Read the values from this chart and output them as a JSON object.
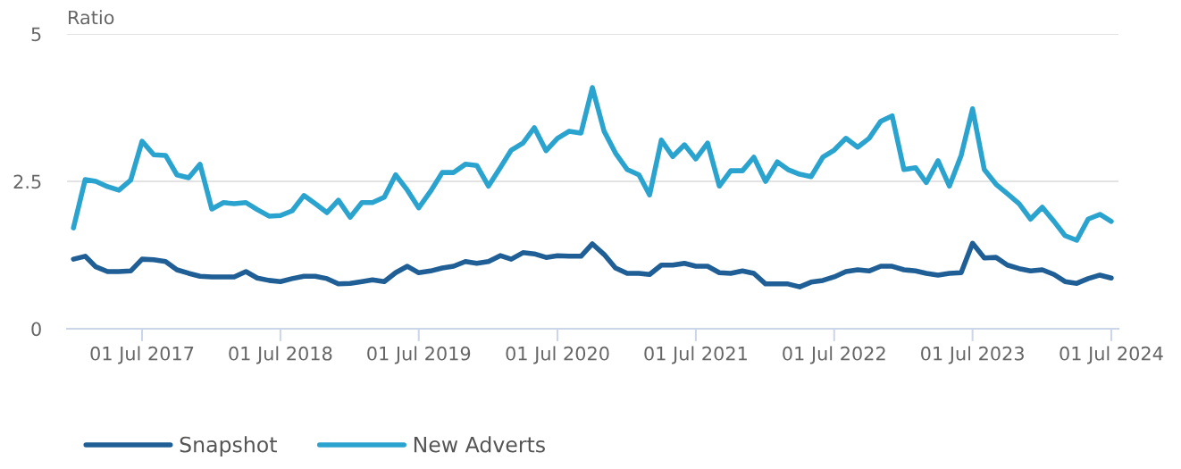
{
  "chart_data": {
    "type": "line",
    "ylabel": "Ratio",
    "x": [
      "2017-01",
      "2017-02",
      "2017-03",
      "2017-04",
      "2017-05",
      "2017-06",
      "2017-07",
      "2017-08",
      "2017-09",
      "2017-10",
      "2017-11",
      "2017-12",
      "2018-01",
      "2018-02",
      "2018-03",
      "2018-04",
      "2018-05",
      "2018-06",
      "2018-07",
      "2018-08",
      "2018-09",
      "2018-10",
      "2018-11",
      "2018-12",
      "2019-01",
      "2019-02",
      "2019-03",
      "2019-04",
      "2019-05",
      "2019-06",
      "2019-07",
      "2019-08",
      "2019-09",
      "2019-10",
      "2019-11",
      "2019-12",
      "2020-01",
      "2020-02",
      "2020-03",
      "2020-04",
      "2020-05",
      "2020-06",
      "2020-07",
      "2020-08",
      "2020-09",
      "2020-10",
      "2020-11",
      "2020-12",
      "2021-01",
      "2021-02",
      "2021-03",
      "2021-04",
      "2021-05",
      "2021-06",
      "2021-07",
      "2021-08",
      "2021-09",
      "2021-10",
      "2021-11",
      "2021-12",
      "2022-01",
      "2022-02",
      "2022-03",
      "2022-04",
      "2022-05",
      "2022-06",
      "2022-07",
      "2022-08",
      "2022-09",
      "2022-10",
      "2022-11",
      "2022-12",
      "2023-01",
      "2023-02",
      "2023-03",
      "2023-04",
      "2023-05",
      "2023-06",
      "2023-07",
      "2023-08",
      "2023-09",
      "2023-10",
      "2023-11",
      "2023-12",
      "2024-01",
      "2024-02",
      "2024-03",
      "2024-04",
      "2024-05",
      "2024-06",
      "2024-07"
    ],
    "series": [
      {
        "name": "Snapshot",
        "color": "#1f5f96",
        "values": [
          1.18,
          1.23,
          1.05,
          0.97,
          0.97,
          0.98,
          1.18,
          1.17,
          1.14,
          1.0,
          0.94,
          0.89,
          0.88,
          0.88,
          0.88,
          0.97,
          0.86,
          0.82,
          0.8,
          0.85,
          0.89,
          0.89,
          0.85,
          0.76,
          0.77,
          0.8,
          0.83,
          0.8,
          0.95,
          1.06,
          0.95,
          0.98,
          1.03,
          1.06,
          1.14,
          1.11,
          1.14,
          1.24,
          1.18,
          1.29,
          1.27,
          1.21,
          1.24,
          1.23,
          1.23,
          1.44,
          1.26,
          1.03,
          0.94,
          0.94,
          0.92,
          1.08,
          1.08,
          1.11,
          1.06,
          1.06,
          0.95,
          0.94,
          0.98,
          0.94,
          0.76,
          0.76,
          0.76,
          0.71,
          0.79,
          0.82,
          0.88,
          0.97,
          1.0,
          0.98,
          1.06,
          1.06,
          1.0,
          0.98,
          0.94,
          0.91,
          0.94,
          0.95,
          1.45,
          1.2,
          1.21,
          1.08,
          1.02,
          0.98,
          1.0,
          0.92,
          0.8,
          0.77,
          0.85,
          0.91,
          0.86
        ]
      },
      {
        "name": "New Adverts",
        "color": "#2ba3cf",
        "values": [
          1.71,
          2.53,
          2.5,
          2.41,
          2.35,
          2.52,
          3.18,
          2.95,
          2.94,
          2.61,
          2.56,
          2.79,
          2.03,
          2.14,
          2.12,
          2.14,
          2.02,
          1.91,
          1.92,
          2.0,
          2.26,
          2.12,
          1.97,
          2.18,
          1.89,
          2.14,
          2.14,
          2.23,
          2.61,
          2.35,
          2.05,
          2.33,
          2.65,
          2.65,
          2.79,
          2.77,
          2.42,
          2.73,
          3.03,
          3.15,
          3.41,
          3.02,
          3.23,
          3.35,
          3.32,
          4.09,
          3.35,
          2.98,
          2.7,
          2.61,
          2.27,
          3.2,
          2.92,
          3.12,
          2.88,
          3.15,
          2.42,
          2.68,
          2.68,
          2.91,
          2.5,
          2.83,
          2.7,
          2.62,
          2.58,
          2.91,
          3.03,
          3.23,
          3.08,
          3.23,
          3.52,
          3.61,
          2.7,
          2.73,
          2.48,
          2.85,
          2.42,
          2.94,
          3.73,
          2.7,
          2.45,
          2.29,
          2.12,
          1.86,
          2.06,
          1.82,
          1.58,
          1.5,
          1.86,
          1.94,
          1.82
        ]
      }
    ],
    "xlim": [
      "2016-12-15",
      "2024-07-20"
    ],
    "xticks": [
      {
        "value": "2017-07-01",
        "label": "01 Jul 2017"
      },
      {
        "value": "2018-07-01",
        "label": "01 Jul 2018"
      },
      {
        "value": "2019-07-01",
        "label": "01 Jul 2019"
      },
      {
        "value": "2020-07-01",
        "label": "01 Jul 2020"
      },
      {
        "value": "2021-07-01",
        "label": "01 Jul 2021"
      },
      {
        "value": "2022-07-01",
        "label": "01 Jul 2022"
      },
      {
        "value": "2023-07-01",
        "label": "01 Jul 2023"
      },
      {
        "value": "2024-07-01",
        "label": "01 Jul 2024"
      }
    ],
    "ylim": [
      0,
      5
    ],
    "yticks": [
      0,
      2.5,
      5
    ],
    "grid": "y",
    "legend": "bottom",
    "line_style": "solid"
  }
}
